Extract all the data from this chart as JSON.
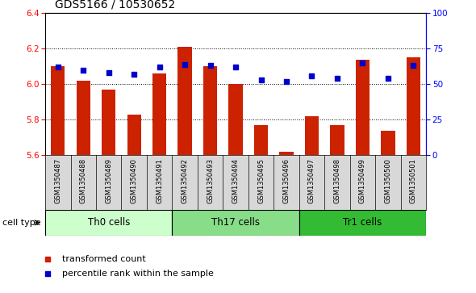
{
  "title": "GDS5166 / 10530652",
  "samples": [
    "GSM1350487",
    "GSM1350488",
    "GSM1350489",
    "GSM1350490",
    "GSM1350491",
    "GSM1350492",
    "GSM1350493",
    "GSM1350494",
    "GSM1350495",
    "GSM1350496",
    "GSM1350497",
    "GSM1350498",
    "GSM1350499",
    "GSM1350500",
    "GSM1350501"
  ],
  "bar_values": [
    6.1,
    6.02,
    5.97,
    5.83,
    6.06,
    6.21,
    6.1,
    6.0,
    5.77,
    5.62,
    5.82,
    5.77,
    6.14,
    5.74,
    6.15
  ],
  "percentile_values": [
    62,
    60,
    58,
    57,
    62,
    64,
    63,
    62,
    53,
    52,
    56,
    54,
    65,
    54,
    63
  ],
  "ymin": 5.6,
  "ymax": 6.4,
  "yticks_left": [
    5.6,
    5.8,
    6.0,
    6.2,
    6.4
  ],
  "yticks_right": [
    0,
    25,
    50,
    75,
    100
  ],
  "bar_color": "#cc2200",
  "dot_color": "#0000cc",
  "bg_color": "#d8d8d8",
  "plot_bg": "#ffffff",
  "groups": [
    {
      "label": "Th0 cells",
      "start": 0,
      "end": 4,
      "color": "#ccffcc"
    },
    {
      "label": "Th17 cells",
      "start": 5,
      "end": 9,
      "color": "#88dd88"
    },
    {
      "label": "Tr1 cells",
      "start": 10,
      "end": 14,
      "color": "#33bb33"
    }
  ],
  "xlabel_cell_type": "cell type",
  "legend_bar": "transformed count",
  "legend_dot": "percentile rank within the sample",
  "title_fontsize": 10,
  "tick_fontsize": 7.5,
  "sample_fontsize": 6.0,
  "group_fontsize": 8.5,
  "legend_fontsize": 8
}
